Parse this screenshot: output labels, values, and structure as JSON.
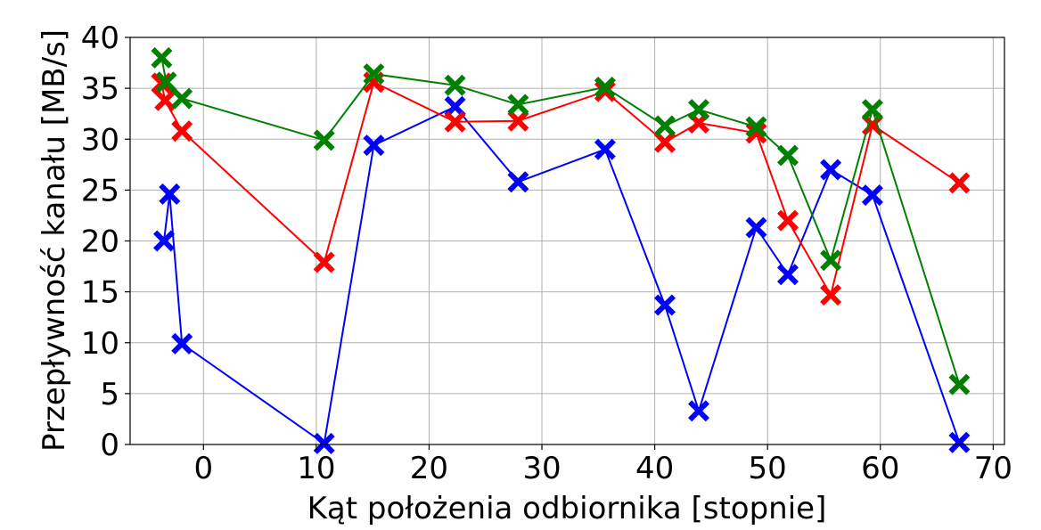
{
  "chart_data": {
    "type": "line",
    "title": "",
    "xlabel": "Kąt położenia odbiornika [stopnie]",
    "ylabel": "Przepływność kanału [MB/s]",
    "xlim": [
      -6.5,
      71
    ],
    "ylim": [
      0,
      40
    ],
    "xticks": [
      0,
      10,
      20,
      30,
      40,
      50,
      60,
      70
    ],
    "yticks": [
      0,
      5,
      10,
      15,
      20,
      25,
      30,
      35,
      40
    ],
    "xtick_labels": [
      "0",
      "10",
      "20",
      "30",
      "40",
      "50",
      "60",
      "70"
    ],
    "ytick_labels": [
      "0",
      "5",
      "10",
      "15",
      "20",
      "25",
      "30",
      "35",
      "40"
    ],
    "grid": true,
    "marker": "X",
    "series": [
      {
        "color": "#0000ff",
        "x": [
          -3.5,
          -3,
          -1.9,
          10.7,
          15.1,
          22.3,
          27.9,
          35.6,
          40.9,
          43.9,
          49.0,
          51.8,
          55.6,
          59.3,
          67.0
        ],
        "y": [
          20.0,
          24.6,
          9.9,
          0.1,
          29.4,
          33.2,
          25.8,
          29.0,
          13.7,
          3.3,
          21.3,
          16.7,
          27.0,
          24.5,
          0.2
        ]
      },
      {
        "color": "#ff0000",
        "x": [
          -3.7,
          -3.4,
          -1.9,
          10.7,
          15.1,
          22.3,
          27.9,
          35.6,
          40.9,
          43.9,
          49.0,
          51.8,
          55.6,
          59.3,
          67.0
        ],
        "y": [
          35.5,
          33.8,
          30.8,
          17.9,
          35.6,
          31.7,
          31.8,
          34.7,
          29.7,
          31.6,
          30.6,
          22.0,
          14.7,
          31.4,
          25.7
        ]
      },
      {
        "color": "#008000",
        "x": [
          -3.7,
          -3.3,
          -1.9,
          10.7,
          15.1,
          22.3,
          27.9,
          35.6,
          40.9,
          43.9,
          49.0,
          51.8,
          55.6,
          59.3,
          67.0
        ],
        "y": [
          38.0,
          35.6,
          34.0,
          29.9,
          36.4,
          35.3,
          33.4,
          35.1,
          31.3,
          32.9,
          31.2,
          28.4,
          18.1,
          32.9,
          5.9
        ]
      }
    ]
  }
}
